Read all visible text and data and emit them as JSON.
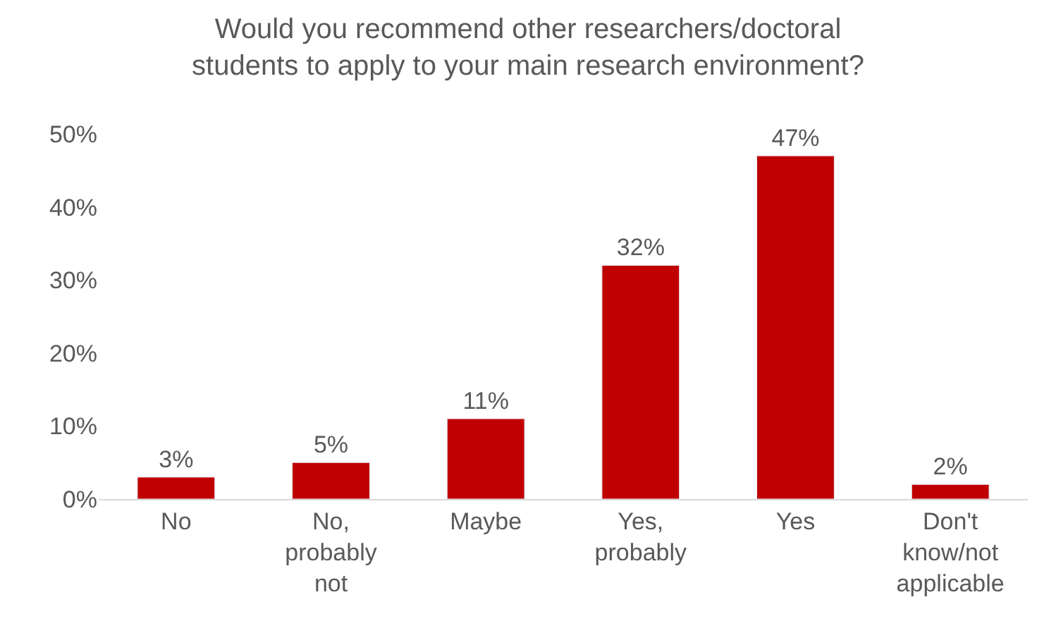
{
  "chart_data": {
    "type": "bar",
    "title": "Would you recommend other researchers/doctoral students to apply to your main research environment?",
    "categories": [
      "No",
      "No, probably not",
      "Maybe",
      "Yes, probably",
      "Yes",
      "Don't know/not applicable"
    ],
    "values": [
      3,
      5,
      11,
      32,
      47,
      2
    ],
    "color": "#c00000",
    "value_labels": [
      "3%",
      "5%",
      "11%",
      "32%",
      "47%",
      "2%"
    ],
    "ylim": [
      0,
      50
    ],
    "yticks": [
      {
        "value": 0,
        "label": "0%"
      },
      {
        "value": 10,
        "label": "10%"
      },
      {
        "value": 20,
        "label": "20%"
      },
      {
        "value": 30,
        "label": "30%"
      },
      {
        "value": 40,
        "label": "40%"
      },
      {
        "value": 50,
        "label": "50%"
      }
    ],
    "grid": false,
    "legend": false
  }
}
